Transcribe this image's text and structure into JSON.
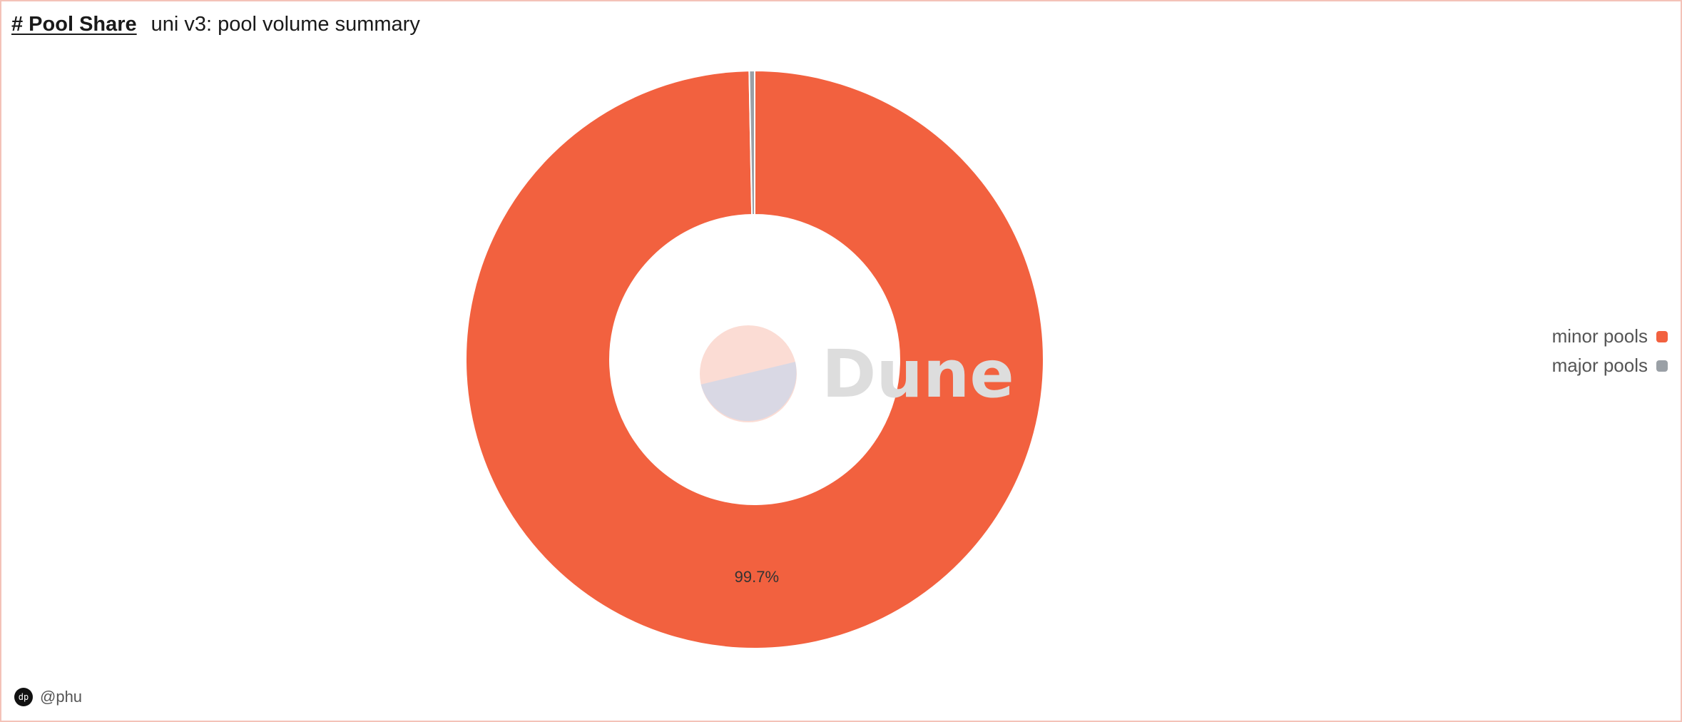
{
  "header": {
    "viz_title": "# Pool Share",
    "query_name": "uni v3: pool volume summary"
  },
  "chart_data": {
    "type": "pie",
    "donut": true,
    "labels": [
      "minor pools",
      "major pools"
    ],
    "values": [
      99.7,
      0.3
    ],
    "unit": "%",
    "colors": [
      "#f2613f",
      "#9aa0a6"
    ],
    "slice_labels": [
      "99.7%",
      ""
    ],
    "legend_position": "right"
  },
  "legend": {
    "items": [
      {
        "label": "minor pools",
        "color": "#f2613f"
      },
      {
        "label": "major pools",
        "color": "#9aa0a6"
      }
    ]
  },
  "watermark": {
    "text": "Dune",
    "icon": "dune-logo-icon"
  },
  "footer": {
    "author": "@phu",
    "avatar_icon": "user-avatar-icon"
  }
}
